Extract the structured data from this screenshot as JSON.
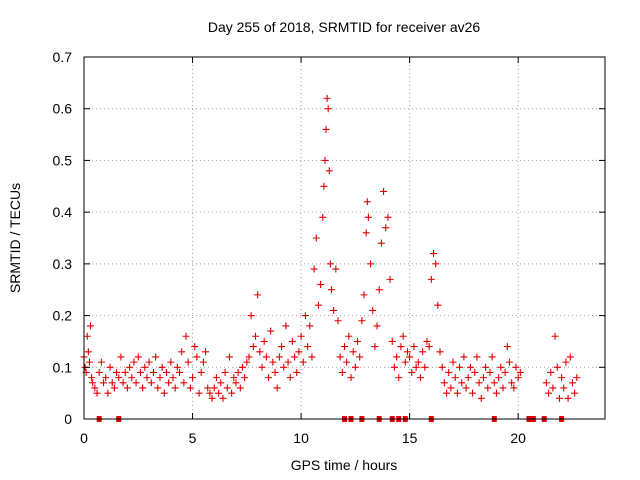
{
  "chart_data": {
    "type": "scatter",
    "title": "Day 255 of 2018, SRMTID for receiver av26",
    "xlabel": "GPS time / hours",
    "ylabel": "SRMTID / TECUs",
    "xlim": [
      0,
      24
    ],
    "ylim": [
      0,
      0.7
    ],
    "x_ticks": [
      0,
      5,
      10,
      15,
      20
    ],
    "x_tick_labels": [
      "0",
      "5",
      "10",
      "15",
      "20"
    ],
    "y_ticks": [
      0,
      0.1,
      0.2,
      0.3,
      0.4,
      0.5,
      0.6,
      0.7
    ],
    "y_tick_labels": [
      "0",
      "0.1",
      "0.2",
      "0.3",
      "0.4",
      "0.5",
      "0.6",
      "0.7"
    ],
    "grid": true,
    "marker": "+",
    "color": "#e00000",
    "series": [
      {
        "name": "SRMTID",
        "points": [
          [
            0.0,
            0.12
          ],
          [
            0.05,
            0.1
          ],
          [
            0.1,
            0.09
          ],
          [
            0.15,
            0.16
          ],
          [
            0.2,
            0.13
          ],
          [
            0.25,
            0.11
          ],
          [
            0.3,
            0.18
          ],
          [
            0.35,
            0.08
          ],
          [
            0.4,
            0.07
          ],
          [
            0.5,
            0.06
          ],
          [
            0.6,
            0.05
          ],
          [
            0.7,
            0.09
          ],
          [
            0.8,
            0.11
          ],
          [
            0.9,
            0.07
          ],
          [
            1.0,
            0.08
          ],
          [
            1.1,
            0.05
          ],
          [
            1.2,
            0.1
          ],
          [
            1.3,
            0.07
          ],
          [
            1.4,
            0.06
          ],
          [
            1.5,
            0.09
          ],
          [
            1.6,
            0.08
          ],
          [
            1.7,
            0.12
          ],
          [
            1.8,
            0.07
          ],
          [
            1.9,
            0.09
          ],
          [
            2.0,
            0.06
          ],
          [
            2.1,
            0.1
          ],
          [
            2.2,
            0.08
          ],
          [
            2.3,
            0.11
          ],
          [
            2.4,
            0.07
          ],
          [
            2.5,
            0.12
          ],
          [
            2.6,
            0.09
          ],
          [
            2.7,
            0.06
          ],
          [
            2.8,
            0.1
          ],
          [
            2.9,
            0.08
          ],
          [
            3.0,
            0.11
          ],
          [
            3.1,
            0.07
          ],
          [
            3.2,
            0.09
          ],
          [
            3.3,
            0.12
          ],
          [
            3.4,
            0.06
          ],
          [
            3.5,
            0.08
          ],
          [
            3.6,
            0.1
          ],
          [
            3.7,
            0.05
          ],
          [
            3.8,
            0.09
          ],
          [
            3.9,
            0.07
          ],
          [
            4.0,
            0.11
          ],
          [
            4.1,
            0.08
          ],
          [
            4.2,
            0.06
          ],
          [
            4.3,
            0.1
          ],
          [
            4.4,
            0.09
          ],
          [
            4.5,
            0.13
          ],
          [
            4.6,
            0.07
          ],
          [
            4.7,
            0.16
          ],
          [
            4.8,
            0.11
          ],
          [
            4.9,
            0.06
          ],
          [
            5.0,
            0.08
          ],
          [
            5.1,
            0.14
          ],
          [
            5.2,
            0.12
          ],
          [
            5.3,
            0.05
          ],
          [
            5.4,
            0.09
          ],
          [
            5.5,
            0.11
          ],
          [
            5.6,
            0.13
          ],
          [
            5.7,
            0.06
          ],
          [
            5.8,
            0.05
          ],
          [
            5.9,
            0.04
          ],
          [
            6.0,
            0.06
          ],
          [
            6.1,
            0.08
          ],
          [
            6.2,
            0.05
          ],
          [
            6.3,
            0.07
          ],
          [
            6.4,
            0.04
          ],
          [
            6.5,
            0.09
          ],
          [
            6.6,
            0.06
          ],
          [
            6.7,
            0.12
          ],
          [
            6.8,
            0.05
          ],
          [
            6.9,
            0.08
          ],
          [
            7.0,
            0.07
          ],
          [
            7.1,
            0.09
          ],
          [
            7.2,
            0.06
          ],
          [
            7.3,
            0.1
          ],
          [
            7.4,
            0.08
          ],
          [
            7.5,
            0.11
          ],
          [
            7.6,
            0.12
          ],
          [
            7.7,
            0.2
          ],
          [
            7.8,
            0.14
          ],
          [
            7.9,
            0.16
          ],
          [
            8.0,
            0.24
          ],
          [
            8.1,
            0.13
          ],
          [
            8.2,
            0.1
          ],
          [
            8.3,
            0.15
          ],
          [
            8.4,
            0.12
          ],
          [
            8.5,
            0.08
          ],
          [
            8.6,
            0.17
          ],
          [
            8.7,
            0.11
          ],
          [
            8.8,
            0.09
          ],
          [
            8.9,
            0.06
          ],
          [
            9.0,
            0.12
          ],
          [
            9.1,
            0.14
          ],
          [
            9.2,
            0.1
          ],
          [
            9.3,
            0.18
          ],
          [
            9.4,
            0.11
          ],
          [
            9.5,
            0.08
          ],
          [
            9.6,
            0.15
          ],
          [
            9.7,
            0.12
          ],
          [
            9.8,
            0.09
          ],
          [
            9.9,
            0.13
          ],
          [
            10.0,
            0.16
          ],
          [
            10.1,
            0.11
          ],
          [
            10.2,
            0.2
          ],
          [
            10.3,
            0.14
          ],
          [
            10.4,
            0.18
          ],
          [
            10.5,
            0.12
          ],
          [
            10.6,
            0.29
          ],
          [
            10.7,
            0.35
          ],
          [
            10.8,
            0.22
          ],
          [
            10.9,
            0.26
          ],
          [
            11.0,
            0.39
          ],
          [
            11.05,
            0.45
          ],
          [
            11.1,
            0.5
          ],
          [
            11.15,
            0.56
          ],
          [
            11.2,
            0.62
          ],
          [
            11.25,
            0.6
          ],
          [
            11.3,
            0.48
          ],
          [
            11.35,
            0.3
          ],
          [
            11.4,
            0.25
          ],
          [
            11.5,
            0.21
          ],
          [
            11.6,
            0.29
          ],
          [
            11.7,
            0.19
          ],
          [
            11.8,
            0.12
          ],
          [
            11.9,
            0.09
          ],
          [
            12.0,
            0.14
          ],
          [
            12.1,
            0.11
          ],
          [
            12.2,
            0.16
          ],
          [
            12.3,
            0.08
          ],
          [
            12.4,
            0.13
          ],
          [
            12.5,
            0.1
          ],
          [
            12.6,
            0.15
          ],
          [
            12.7,
            0.12
          ],
          [
            12.8,
            0.19
          ],
          [
            12.9,
            0.24
          ],
          [
            13.0,
            0.36
          ],
          [
            13.05,
            0.42
          ],
          [
            13.1,
            0.39
          ],
          [
            13.2,
            0.3
          ],
          [
            13.3,
            0.21
          ],
          [
            13.4,
            0.14
          ],
          [
            13.5,
            0.18
          ],
          [
            13.6,
            0.25
          ],
          [
            13.7,
            0.34
          ],
          [
            13.8,
            0.44
          ],
          [
            13.9,
            0.37
          ],
          [
            14.0,
            0.39
          ],
          [
            14.1,
            0.27
          ],
          [
            14.2,
            0.15
          ],
          [
            14.3,
            0.1
          ],
          [
            14.4,
            0.12
          ],
          [
            14.5,
            0.08
          ],
          [
            14.6,
            0.14
          ],
          [
            14.7,
            0.16
          ],
          [
            14.8,
            0.11
          ],
          [
            14.9,
            0.13
          ],
          [
            15.0,
            0.12
          ],
          [
            15.1,
            0.09
          ],
          [
            15.2,
            0.14
          ],
          [
            15.3,
            0.1
          ],
          [
            15.4,
            0.11
          ],
          [
            15.5,
            0.08
          ],
          [
            15.6,
            0.13
          ],
          [
            15.7,
            0.1
          ],
          [
            15.8,
            0.15
          ],
          [
            15.9,
            0.14
          ],
          [
            16.0,
            0.27
          ],
          [
            16.1,
            0.32
          ],
          [
            16.2,
            0.3
          ],
          [
            16.3,
            0.22
          ],
          [
            16.4,
            0.13
          ],
          [
            16.5,
            0.1
          ],
          [
            16.6,
            0.07
          ],
          [
            16.7,
            0.05
          ],
          [
            16.8,
            0.09
          ],
          [
            16.9,
            0.06
          ],
          [
            17.0,
            0.11
          ],
          [
            17.1,
            0.08
          ],
          [
            17.2,
            0.05
          ],
          [
            17.3,
            0.1
          ],
          [
            17.4,
            0.07
          ],
          [
            17.5,
            0.12
          ],
          [
            17.6,
            0.06
          ],
          [
            17.7,
            0.08
          ],
          [
            17.8,
            0.1
          ],
          [
            17.9,
            0.05
          ],
          [
            18.0,
            0.09
          ],
          [
            18.1,
            0.12
          ],
          [
            18.2,
            0.07
          ],
          [
            18.3,
            0.04
          ],
          [
            18.4,
            0.08
          ],
          [
            18.5,
            0.1
          ],
          [
            18.6,
            0.06
          ],
          [
            18.7,
            0.09
          ],
          [
            18.8,
            0.12
          ],
          [
            18.9,
            0.07
          ],
          [
            19.0,
            0.05
          ],
          [
            19.1,
            0.08
          ],
          [
            19.2,
            0.1
          ],
          [
            19.3,
            0.06
          ],
          [
            19.4,
            0.09
          ],
          [
            19.5,
            0.14
          ],
          [
            19.6,
            0.11
          ],
          [
            19.7,
            0.07
          ],
          [
            19.8,
            0.06
          ],
          [
            19.9,
            0.1
          ],
          [
            20.0,
            0.08
          ],
          [
            20.1,
            0.09
          ],
          [
            21.3,
            0.07
          ],
          [
            21.4,
            0.05
          ],
          [
            21.5,
            0.09
          ],
          [
            21.6,
            0.06
          ],
          [
            21.7,
            0.16
          ],
          [
            21.8,
            0.1
          ],
          [
            21.9,
            0.04
          ],
          [
            22.0,
            0.08
          ],
          [
            22.1,
            0.06
          ],
          [
            22.2,
            0.11
          ],
          [
            22.3,
            0.04
          ],
          [
            22.4,
            0.12
          ],
          [
            22.5,
            0.07
          ],
          [
            22.6,
            0.05
          ],
          [
            22.7,
            0.08
          ]
        ]
      }
    ],
    "data_gaps_hours": [
      0.7,
      1.6,
      12.0,
      12.3,
      12.8,
      13.6,
      14.2,
      14.5,
      14.8,
      16.0,
      18.9,
      20.5,
      20.7,
      21.2,
      22.0
    ]
  }
}
